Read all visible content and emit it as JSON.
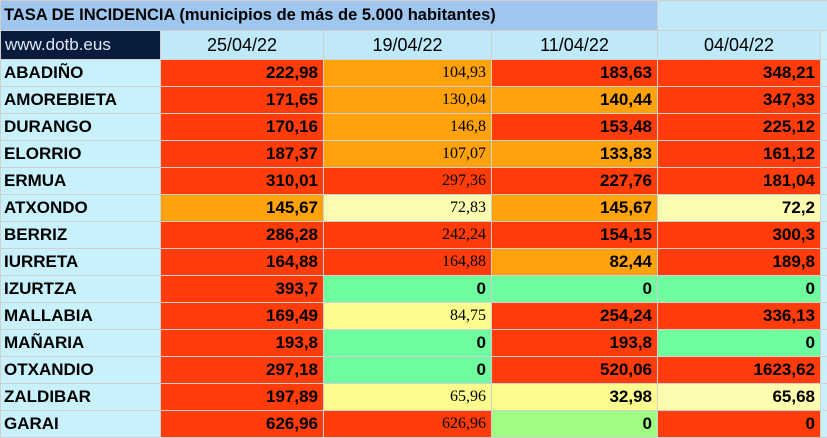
{
  "header": {
    "title": "TASA DE INCIDENCIA  (municipios de más de 5.000 habitantes)",
    "site": "www.dotb.eus",
    "dates": [
      "25/04/22",
      "19/04/22",
      "11/04/22",
      "04/04/22"
    ]
  },
  "colors": {
    "red": "#ff3c0a",
    "orange": "#ffa20c",
    "yellow": "#fbfc8e",
    "pale_yellow": "#fdfdb0",
    "green": "#6efc9e",
    "light_green": "#9ffd84"
  },
  "rows": [
    {
      "name": "ABADIÑO",
      "cells": [
        {
          "value": "222,98",
          "color": "red"
        },
        {
          "value": "104,93",
          "color": "orange",
          "serif": true
        },
        {
          "value": "183,63",
          "color": "red"
        },
        {
          "value": "348,21",
          "color": "red"
        }
      ]
    },
    {
      "name": "AMOREBIETA",
      "cells": [
        {
          "value": "171,65",
          "color": "red"
        },
        {
          "value": "130,04",
          "color": "orange",
          "serif": true
        },
        {
          "value": "140,44",
          "color": "orange"
        },
        {
          "value": "347,33",
          "color": "red"
        }
      ]
    },
    {
      "name": "DURANGO",
      "cells": [
        {
          "value": "170,16",
          "color": "red"
        },
        {
          "value": "146,8",
          "color": "orange",
          "serif": true
        },
        {
          "value": "153,48",
          "color": "red"
        },
        {
          "value": "225,12",
          "color": "red"
        }
      ]
    },
    {
      "name": "ELORRIO",
      "cells": [
        {
          "value": "187,37",
          "color": "red"
        },
        {
          "value": "107,07",
          "color": "orange",
          "serif": true
        },
        {
          "value": "133,83",
          "color": "orange"
        },
        {
          "value": "161,12",
          "color": "red"
        }
      ]
    },
    {
      "name": "ERMUA",
      "cells": [
        {
          "value": "310,01",
          "color": "red"
        },
        {
          "value": "297,36",
          "color": "red",
          "serif": true
        },
        {
          "value": "227,76",
          "color": "red"
        },
        {
          "value": "181,04",
          "color": "red"
        }
      ]
    },
    {
      "name": "ATXONDO",
      "cells": [
        {
          "value": "145,67",
          "color": "orange"
        },
        {
          "value": "72,83",
          "color": "pale_yellow",
          "serif": true
        },
        {
          "value": "145,67",
          "color": "orange"
        },
        {
          "value": "72,2",
          "color": "pale_yellow"
        }
      ]
    },
    {
      "name": "BERRIZ",
      "cells": [
        {
          "value": "286,28",
          "color": "red"
        },
        {
          "value": "242,24",
          "color": "red",
          "serif": true
        },
        {
          "value": "154,15",
          "color": "red"
        },
        {
          "value": "300,3",
          "color": "red"
        }
      ]
    },
    {
      "name": "IURRETA",
      "cells": [
        {
          "value": "164,88",
          "color": "red"
        },
        {
          "value": "164,88",
          "color": "red",
          "serif": true
        },
        {
          "value": "82,44",
          "color": "orange"
        },
        {
          "value": "189,8",
          "color": "red"
        }
      ]
    },
    {
      "name": "IZURTZA",
      "cells": [
        {
          "value": "393,7",
          "color": "red"
        },
        {
          "value": "0",
          "color": "green"
        },
        {
          "value": "0",
          "color": "green"
        },
        {
          "value": "0",
          "color": "green"
        }
      ]
    },
    {
      "name": "MALLABIA",
      "cells": [
        {
          "value": "169,49",
          "color": "red"
        },
        {
          "value": "84,75",
          "color": "yellow",
          "serif": true
        },
        {
          "value": "254,24",
          "color": "red"
        },
        {
          "value": "336,13",
          "color": "red"
        }
      ]
    },
    {
      "name": "MAÑARIA",
      "cells": [
        {
          "value": "193,8",
          "color": "red"
        },
        {
          "value": "0",
          "color": "green"
        },
        {
          "value": "193,8",
          "color": "red"
        },
        {
          "value": "0",
          "color": "green"
        }
      ]
    },
    {
      "name": "OTXANDIO",
      "cells": [
        {
          "value": "297,18",
          "color": "red"
        },
        {
          "value": "0",
          "color": "green"
        },
        {
          "value": "520,06",
          "color": "red"
        },
        {
          "value": "1623,62",
          "color": "red"
        }
      ]
    },
    {
      "name": "ZALDIBAR",
      "cells": [
        {
          "value": "197,89",
          "color": "red"
        },
        {
          "value": "65,96",
          "color": "yellow",
          "serif": true
        },
        {
          "value": "32,98",
          "color": "yellow"
        },
        {
          "value": "65,68",
          "color": "pale_yellow"
        }
      ]
    },
    {
      "name": "GARAI",
      "cells": [
        {
          "value": "626,96",
          "color": "red"
        },
        {
          "value": "626,96",
          "color": "red",
          "serif": true
        },
        {
          "value": "0",
          "color": "light_green"
        },
        {
          "value": "0",
          "color": "red"
        }
      ]
    }
  ]
}
